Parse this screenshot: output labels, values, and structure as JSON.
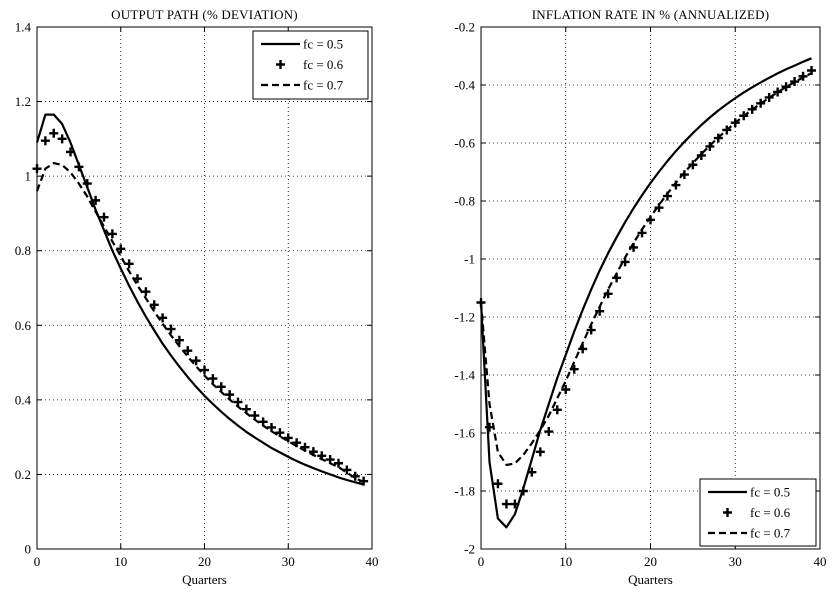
{
  "chart_data": [
    {
      "type": "line",
      "title": "OUTPUT PATH (% DEVIATION)",
      "xlabel": "Quarters",
      "ylabel": "",
      "xlim": [
        0,
        40
      ],
      "ylim": [
        0,
        1.4
      ],
      "xticks": [
        0,
        10,
        20,
        30,
        40
      ],
      "yticks": [
        0,
        0.2,
        0.4,
        0.6,
        0.8,
        1,
        1.2,
        1.4
      ],
      "xtick_labels": [
        "0",
        "10",
        "20",
        "30",
        "40"
      ],
      "ytick_labels": [
        "0",
        "0.2",
        "0.4",
        "0.6",
        "0.8",
        "1",
        "1.2",
        "1.4"
      ],
      "grid": true,
      "legend_position": "top-right",
      "x": [
        0,
        1,
        2,
        3,
        4,
        5,
        6,
        7,
        8,
        9,
        10,
        11,
        12,
        13,
        14,
        15,
        16,
        17,
        18,
        19,
        20,
        21,
        22,
        23,
        24,
        25,
        26,
        27,
        28,
        29,
        30,
        31,
        32,
        33,
        34,
        35,
        36,
        37,
        38,
        39
      ],
      "series": [
        {
          "name": "fc = 0.5",
          "style": "solid",
          "values": [
            1.09,
            1.165,
            1.165,
            1.14,
            1.09,
            1.03,
            0.97,
            0.91,
            0.855,
            0.8,
            0.752,
            0.706,
            0.663,
            0.623,
            0.586,
            0.551,
            0.519,
            0.489,
            0.461,
            0.435,
            0.411,
            0.389,
            0.368,
            0.349,
            0.331,
            0.314,
            0.299,
            0.285,
            0.271,
            0.259,
            0.247,
            0.236,
            0.226,
            0.217,
            0.208,
            0.2,
            0.192,
            0.185,
            0.179,
            0.173
          ]
        },
        {
          "name": "fc = 0.6",
          "style": "plus",
          "values": [
            1.02,
            1.095,
            1.115,
            1.1,
            1.065,
            1.025,
            0.98,
            0.935,
            0.89,
            0.845,
            0.805,
            0.765,
            0.725,
            0.69,
            0.655,
            0.62,
            0.59,
            0.56,
            0.532,
            0.505,
            0.48,
            0.457,
            0.435,
            0.414,
            0.394,
            0.375,
            0.358,
            0.341,
            0.326,
            0.312,
            0.298,
            0.285,
            0.273,
            0.261,
            0.25,
            0.24,
            0.23,
            0.212,
            0.195,
            0.182
          ]
        },
        {
          "name": "fc = 0.7",
          "style": "dashed",
          "values": [
            0.96,
            1.02,
            1.035,
            1.03,
            1.01,
            0.98,
            0.945,
            0.905,
            0.865,
            0.825,
            0.785,
            0.745,
            0.707,
            0.672,
            0.637,
            0.604,
            0.573,
            0.544,
            0.516,
            0.49,
            0.465,
            0.442,
            0.421,
            0.401,
            0.382,
            0.364,
            0.347,
            0.331,
            0.316,
            0.302,
            0.289,
            0.276,
            0.264,
            0.252,
            0.241,
            0.23,
            0.22,
            0.205,
            0.19,
            0.18
          ]
        }
      ]
    },
    {
      "type": "line",
      "title": "INFLATION RATE IN % (ANNUALIZED)",
      "xlabel": "Quarters",
      "ylabel": "",
      "xlim": [
        0,
        40
      ],
      "ylim": [
        -2,
        -0.2
      ],
      "xticks": [
        0,
        10,
        20,
        30,
        40
      ],
      "yticks": [
        -2,
        -1.8,
        -1.6,
        -1.4,
        -1.2,
        -1,
        -0.8,
        -0.6,
        -0.4,
        -0.2
      ],
      "xtick_labels": [
        "0",
        "10",
        "20",
        "30",
        "40"
      ],
      "ytick_labels": [
        "-2",
        "-1.8",
        "-1.6",
        "-1.4",
        "-1.2",
        "-1",
        "-0.8",
        "-0.6",
        "-0.4",
        "-0.2"
      ],
      "grid": true,
      "legend_position": "bottom-right",
      "x": [
        0,
        1,
        2,
        3,
        4,
        5,
        6,
        7,
        8,
        9,
        10,
        11,
        12,
        13,
        14,
        15,
        16,
        17,
        18,
        19,
        20,
        21,
        22,
        23,
        24,
        25,
        26,
        27,
        28,
        29,
        30,
        31,
        32,
        33,
        34,
        35,
        36,
        37,
        38,
        39
      ],
      "series": [
        {
          "name": "fc = 0.5",
          "style": "solid",
          "values": [
            -1.15,
            -1.7,
            -1.895,
            -1.925,
            -1.88,
            -1.79,
            -1.69,
            -1.59,
            -1.5,
            -1.41,
            -1.33,
            -1.25,
            -1.175,
            -1.105,
            -1.04,
            -0.98,
            -0.925,
            -0.873,
            -0.825,
            -0.78,
            -0.738,
            -0.699,
            -0.662,
            -0.628,
            -0.596,
            -0.566,
            -0.538,
            -0.512,
            -0.488,
            -0.466,
            -0.445,
            -0.426,
            -0.408,
            -0.391,
            -0.375,
            -0.36,
            -0.346,
            -0.333,
            -0.32,
            -0.308
          ]
        },
        {
          "name": "fc = 0.6",
          "style": "plus",
          "values": [
            -1.15,
            -1.58,
            -1.775,
            -1.845,
            -1.845,
            -1.8,
            -1.735,
            -1.665,
            -1.595,
            -1.52,
            -1.45,
            -1.38,
            -1.31,
            -1.245,
            -1.18,
            -1.12,
            -1.065,
            -1.01,
            -0.96,
            -0.91,
            -0.865,
            -0.823,
            -0.783,
            -0.745,
            -0.709,
            -0.675,
            -0.643,
            -0.612,
            -0.583,
            -0.555,
            -0.53,
            -0.506,
            -0.484,
            -0.463,
            -0.443,
            -0.424,
            -0.406,
            -0.388,
            -0.37,
            -0.35
          ]
        },
        {
          "name": "fc = 0.7",
          "style": "dashed",
          "values": [
            -1.15,
            -1.5,
            -1.665,
            -1.71,
            -1.705,
            -1.675,
            -1.635,
            -1.59,
            -1.54,
            -1.48,
            -1.42,
            -1.355,
            -1.29,
            -1.225,
            -1.165,
            -1.105,
            -1.05,
            -0.995,
            -0.945,
            -0.898,
            -0.855,
            -0.813,
            -0.774,
            -0.737,
            -0.702,
            -0.669,
            -0.638,
            -0.609,
            -0.581,
            -0.555,
            -0.53,
            -0.507,
            -0.485,
            -0.464,
            -0.444,
            -0.425,
            -0.407,
            -0.39,
            -0.374,
            -0.359
          ]
        }
      ]
    }
  ]
}
